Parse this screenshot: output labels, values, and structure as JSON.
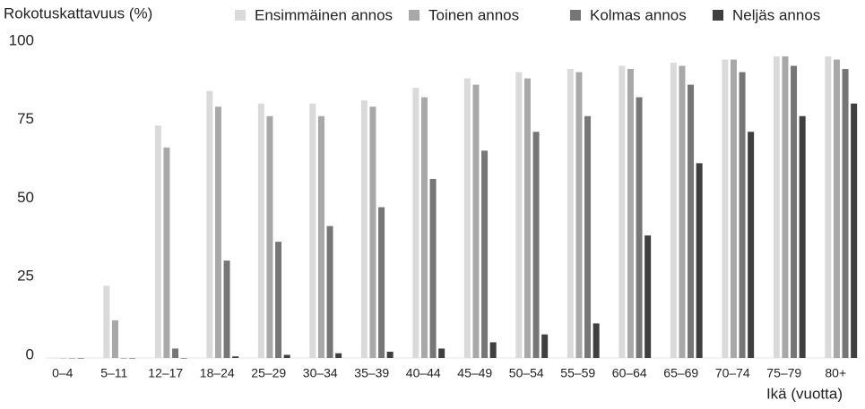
{
  "chart_data": {
    "type": "bar",
    "title": "Rokotuskattavuus (%)",
    "x_label": "Ikä (vuotta)",
    "categories": [
      "0–4",
      "5–11",
      "12–17",
      "18–24",
      "25–29",
      "30–34",
      "35–39",
      "40–44",
      "45–49",
      "50–54",
      "55–59",
      "60–64",
      "65–69",
      "70–74",
      "75–79",
      "80+"
    ],
    "series": [
      {
        "name": "Ensimmäinen annos",
        "color": "#dadada",
        "values": [
          0,
          23,
          74,
          85,
          81,
          81,
          82,
          86,
          89,
          91,
          92,
          93,
          94,
          95,
          96,
          96
        ]
      },
      {
        "name": "Toinen annos",
        "color": "#a8a8a8",
        "values": [
          0,
          12,
          67,
          80,
          77,
          77,
          80,
          83,
          87,
          89,
          91,
          92,
          93,
          95,
          96,
          95
        ]
      },
      {
        "name": "Kolmas annos",
        "color": "#767676",
        "values": [
          0,
          0,
          3,
          31,
          37,
          42,
          48,
          57,
          66,
          72,
          77,
          83,
          87,
          91,
          93,
          92
        ]
      },
      {
        "name": "Neljäs annos",
        "color": "#3f3f3f",
        "values": [
          0,
          0,
          0,
          0.5,
          1,
          1.5,
          2,
          3,
          5,
          7.5,
          11,
          39,
          62,
          72,
          77,
          81
        ]
      }
    ],
    "ylim": [
      0,
      100
    ],
    "yticks": [
      0,
      25,
      50,
      75,
      100
    ],
    "grid": false
  }
}
